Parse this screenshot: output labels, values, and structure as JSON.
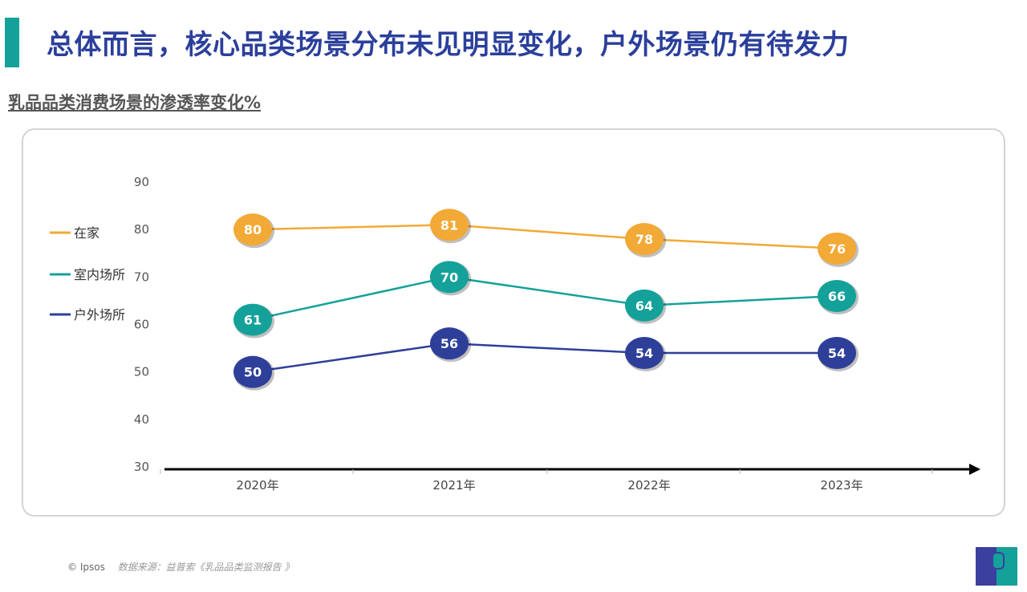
{
  "header": {
    "title": "总体而言，核心品类场景分布未见明显变化，户外场景仍有待发力",
    "subtitle": "乳品品类消费场景的渗透率变化%"
  },
  "footer": {
    "copyright": "© Ipsos",
    "source": "数据来源：益普索《乳品品类监测报告 》",
    "logo_text": "Ipsos"
  },
  "chart_data": {
    "type": "line",
    "categories": [
      "2020年",
      "2021年",
      "2022年",
      "2023年"
    ],
    "y_ticks": [
      "30",
      "40",
      "50",
      "60",
      "70",
      "80",
      "90"
    ],
    "ylim": [
      30,
      90
    ],
    "grid": false,
    "legend_position": "left",
    "series": [
      {
        "name": "在家",
        "values": [
          80,
          81,
          78,
          76
        ],
        "color": "#f2a935"
      },
      {
        "name": "室内场所",
        "values": [
          61,
          70,
          64,
          66
        ],
        "color": "#14a19a"
      },
      {
        "name": "户外场所",
        "values": [
          50,
          56,
          54,
          54
        ],
        "color": "#2e3f9a"
      }
    ]
  }
}
